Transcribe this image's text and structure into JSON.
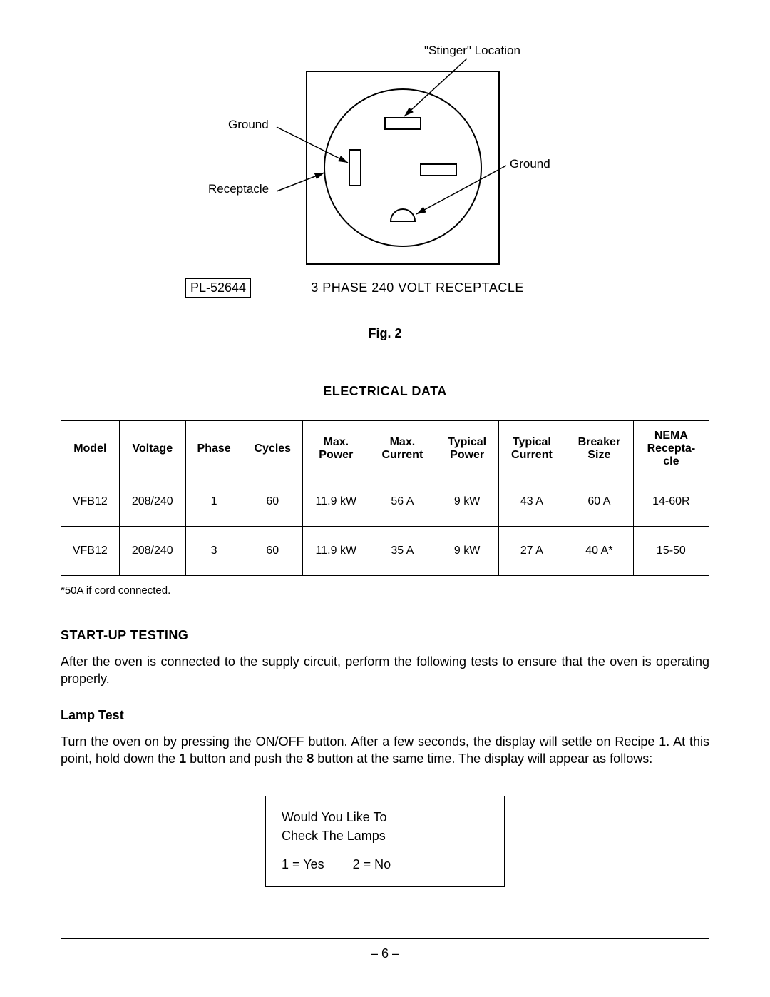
{
  "diagram": {
    "labels": {
      "stinger": "\"Stinger\" Location",
      "ground_left": "Ground",
      "ground_right": "Ground",
      "receptacle": "Receptacle"
    },
    "pl_code": "PL-52644",
    "phase_caption_pre": "3 PHASE ",
    "phase_caption_underlined": "240 VOLT",
    "phase_caption_post": " RECEPTACLE",
    "fig_label": "Fig. 2",
    "colors": {
      "stroke": "#000000",
      "bg": "#ffffff"
    }
  },
  "electrical": {
    "title": "ELECTRICAL DATA",
    "columns": [
      "Model",
      "Voltage",
      "Phase",
      "Cycles",
      "Max. Power",
      "Max. Current",
      "Typical Power",
      "Typical Current",
      "Breaker Size",
      "NEMA Recepta- cle"
    ],
    "column_headers_multiline": [
      [
        "Model"
      ],
      [
        "Voltage"
      ],
      [
        "Phase"
      ],
      [
        "Cycles"
      ],
      [
        "Max.",
        "Power"
      ],
      [
        "Max.",
        "Current"
      ],
      [
        "Typical",
        "Power"
      ],
      [
        "Typical",
        "Current"
      ],
      [
        "Breaker",
        "Size"
      ],
      [
        "NEMA",
        "Recepta-",
        "cle"
      ]
    ],
    "rows": [
      [
        "VFB12",
        "208/240",
        "1",
        "60",
        "11.9 kW",
        "56 A",
        "9 kW",
        "43 A",
        "60 A",
        "14-60R"
      ],
      [
        "VFB12",
        "208/240",
        "3",
        "60",
        "11.9 kW",
        "35 A",
        "9 kW",
        "27 A",
        "40 A*",
        "15-50"
      ]
    ],
    "footnote": "*50A if cord connected."
  },
  "startup": {
    "heading": "START-UP TESTING",
    "body": "After the oven is connected to the supply circuit, perform the following tests to ensure that the oven is operating properly."
  },
  "lamp": {
    "heading": "Lamp Test",
    "body_pre": "Turn the oven on by pressing the ON/OFF button.  After a few seconds, the display will settle on Recipe 1.  At this point, hold down the ",
    "bold1": "1",
    "body_mid": " button and push the ",
    "bold2": "8",
    "body_post": " button at the same time.  The display will appear as follows:"
  },
  "display": {
    "line1": "Would You Like To",
    "line2": "Check The Lamps",
    "opt1": "1 = Yes",
    "opt2": "2 = No"
  },
  "page_number": "– 6 –"
}
